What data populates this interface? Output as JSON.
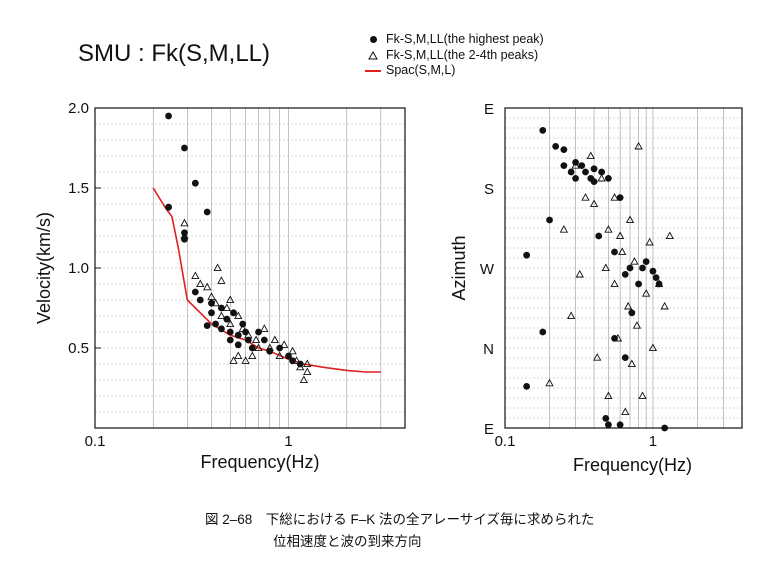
{
  "title": "SMU : Fk(S,M,LL)",
  "legend": {
    "peak": "Fk-S,M,LL(the highest peak)",
    "peaks24": "Fk-S,M,LL(the 2-4th peaks)",
    "spac": "Spac(S,M,L)"
  },
  "caption": {
    "line1": "図 2–68　下総における F–K 法の全アレーサイズ毎に求められた",
    "line2": "位相速度と波の到来方向"
  },
  "colors": {
    "spac": "#e02020",
    "markers": "#111111"
  },
  "chart_data": [
    {
      "type": "scatter",
      "xscale": "log",
      "xlim": [
        0.1,
        4
      ],
      "ylim": [
        0,
        2
      ],
      "xlabel": "Frequency(Hz)",
      "ylabel": "Velocity(km/s)",
      "xticks": [
        "0.1",
        "1"
      ],
      "yticks": [
        "2.0",
        "1.5",
        "1.0",
        "0.5"
      ],
      "series": [
        {
          "name": "Fk-S,M,LL(the highest peak)",
          "marker": "dot",
          "x": [
            0.24,
            0.24,
            0.29,
            0.29,
            0.29,
            0.33,
            0.33,
            0.35,
            0.38,
            0.38,
            0.4,
            0.4,
            0.42,
            0.45,
            0.45,
            0.48,
            0.5,
            0.5,
            0.52,
            0.55,
            0.55,
            0.58,
            0.6,
            0.62,
            0.65,
            0.7,
            0.75,
            0.8,
            0.9,
            1.0,
            1.05,
            1.15
          ],
          "y": [
            1.95,
            1.38,
            1.75,
            1.22,
            1.18,
            1.53,
            0.85,
            0.8,
            1.35,
            0.64,
            0.78,
            0.72,
            0.65,
            0.75,
            0.62,
            0.68,
            0.6,
            0.55,
            0.72,
            0.58,
            0.52,
            0.65,
            0.6,
            0.55,
            0.5,
            0.6,
            0.55,
            0.48,
            0.5,
            0.45,
            0.42,
            0.4
          ]
        },
        {
          "name": "Fk-S,M,LL(the 2-4th peaks)",
          "marker": "triangle",
          "x": [
            0.29,
            0.29,
            0.33,
            0.35,
            0.38,
            0.4,
            0.42,
            0.43,
            0.45,
            0.45,
            0.48,
            0.5,
            0.5,
            0.52,
            0.55,
            0.55,
            0.58,
            0.6,
            0.62,
            0.65,
            0.68,
            0.7,
            0.75,
            0.8,
            0.85,
            0.9,
            0.95,
            1.05,
            1.1,
            1.15,
            1.2,
            1.25,
            1.25
          ],
          "y": [
            1.28,
            1.2,
            0.95,
            0.9,
            0.88,
            0.82,
            0.78,
            1.0,
            0.92,
            0.7,
            0.75,
            0.8,
            0.65,
            0.42,
            0.7,
            0.45,
            0.62,
            0.42,
            0.58,
            0.45,
            0.55,
            0.5,
            0.62,
            0.5,
            0.55,
            0.45,
            0.52,
            0.48,
            0.42,
            0.38,
            0.3,
            0.35,
            0.4
          ]
        },
        {
          "name": "Spac(S,M,L)",
          "marker": "line",
          "x": [
            0.2,
            0.23,
            0.25,
            0.27,
            0.3,
            0.35,
            0.4,
            0.5,
            0.6,
            0.7,
            0.8,
            1.0,
            1.2,
            1.5,
            2.0,
            2.5,
            3.0
          ],
          "y": [
            1.5,
            1.38,
            1.32,
            1.12,
            0.8,
            0.72,
            0.65,
            0.58,
            0.55,
            0.5,
            0.48,
            0.43,
            0.4,
            0.38,
            0.36,
            0.35,
            0.35
          ]
        }
      ]
    },
    {
      "type": "scatter",
      "xscale": "log",
      "xlim": [
        0.1,
        4
      ],
      "ylabel": "Azimuth",
      "xlabel": "Frequency(Hz)",
      "yticks": [
        "E",
        "S",
        "W",
        "N",
        "E"
      ],
      "xticks": [
        "0.1",
        "1"
      ],
      "series": [
        {
          "name": "Fk-S,M,LL(the highest peak)",
          "marker": "dot",
          "x": [
            0.14,
            0.14,
            0.18,
            0.18,
            0.2,
            0.22,
            0.25,
            0.25,
            0.28,
            0.3,
            0.3,
            0.33,
            0.35,
            0.38,
            0.4,
            0.4,
            0.43,
            0.45,
            0.48,
            0.5,
            0.5,
            0.55,
            0.55,
            0.6,
            0.6,
            0.65,
            0.65,
            0.7,
            0.72,
            0.8,
            0.85,
            0.9,
            1.0,
            1.05,
            1.1,
            1.2
          ],
          "y": [
            0.13,
            0.54,
            0.3,
            0.93,
            0.65,
            0.88,
            0.87,
            0.82,
            0.8,
            0.83,
            0.78,
            0.82,
            0.8,
            0.78,
            0.81,
            0.77,
            0.6,
            0.8,
            0.03,
            0.78,
            0.01,
            0.55,
            0.28,
            0.72,
            0.01,
            0.48,
            0.22,
            0.5,
            0.36,
            0.45,
            0.5,
            0.52,
            0.49,
            0.47,
            0.45,
            0.0
          ]
        },
        {
          "name": "Fk-S,M,LL(the 2-4th peaks)",
          "marker": "triangle",
          "x": [
            0.2,
            0.25,
            0.28,
            0.3,
            0.32,
            0.35,
            0.38,
            0.4,
            0.42,
            0.45,
            0.48,
            0.5,
            0.5,
            0.55,
            0.55,
            0.58,
            0.6,
            0.62,
            0.65,
            0.68,
            0.7,
            0.72,
            0.75,
            0.78,
            0.8,
            0.85,
            0.9,
            0.95,
            1.0,
            1.1,
            1.2,
            1.3
          ],
          "y": [
            0.14,
            0.62,
            0.35,
            0.82,
            0.48,
            0.72,
            0.85,
            0.7,
            0.22,
            0.78,
            0.5,
            0.62,
            0.1,
            0.45,
            0.72,
            0.28,
            0.6,
            0.55,
            0.05,
            0.38,
            0.65,
            0.2,
            0.52,
            0.32,
            0.88,
            0.1,
            0.42,
            0.58,
            0.25,
            0.45,
            0.38,
            0.6
          ]
        }
      ]
    }
  ]
}
